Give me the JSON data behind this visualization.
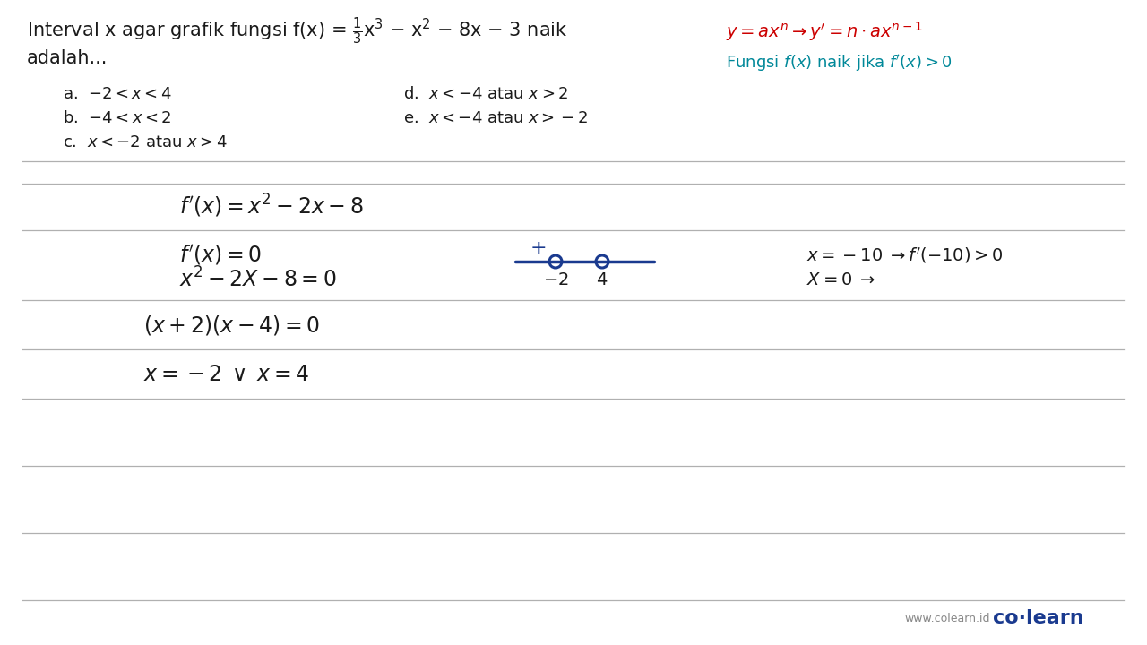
{
  "bg_color": "#ffffff",
  "line_color": "#b0b0b0",
  "blue_color": "#1a3a8f",
  "red_color": "#cc0000",
  "teal_color": "#008899",
  "dark_color": "#1a1a1a",
  "gray_color": "#555555",
  "title_line1": "Interval x agar grafik fungsi f(x) =",
  "title_line2": "adalah...",
  "red_formula_text": "$y = ax^n \\rightarrow y' = n \\cdot ax^{n-1}$",
  "teal_note_text": "Fungsi $f(x)$ naik jika $f'(x) > 0$",
  "choices_left": [
    "a.  -2 < x < 4",
    "b.  -4 < x < 2",
    "c.  x < -2 atau x > 4"
  ],
  "choices_right": [
    "d.  x < -4 atau x > 2",
    "e.  x < -4 atau x > -2"
  ],
  "sol_row1": "$f'(x) = x^2 - 2x - 8$",
  "sol_row2_left": "$f'(x) = 0$",
  "sol_row3_left": "$x^2 - 2X - 8 = 0$",
  "sol_row4_left": "$(x+2)(x-4) = 0$",
  "sol_row5_left": "$x = -2 \\; \\vee \\; x = 4$",
  "test_row1": "$x = -10 \\; \\rightarrow f'(-10) > 0$",
  "test_row2": "$X = 0 \\; \\rightarrow$",
  "num_line_label_neg2": "$-2$",
  "num_line_label_4": "$4$",
  "logo_text": "co·learn",
  "logo_url": "www.colearn.id"
}
